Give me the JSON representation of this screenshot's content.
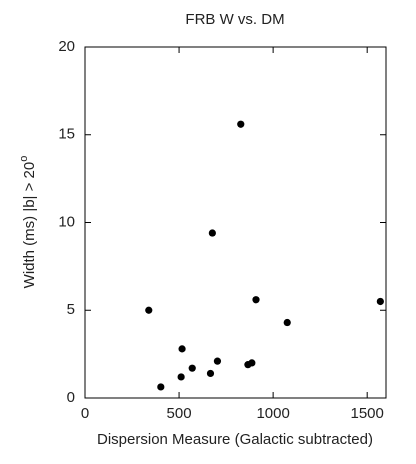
{
  "chart_data": {
    "type": "scatter",
    "title": "FRB W vs. DM",
    "xlabel": "Dispersion Measure (Galactic subtracted)",
    "ylabel": "Width (ms) |b| > 20",
    "ylabel_superscript": "o",
    "x": [
      339,
      403,
      511,
      516,
      570,
      667,
      677,
      704,
      828,
      866,
      887,
      909,
      1075,
      1570
    ],
    "values": [
      5.0,
      0.63,
      1.2,
      2.8,
      1.7,
      1.4,
      9.4,
      2.1,
      15.6,
      1.9,
      2.0,
      5.6,
      4.3,
      5.5
    ],
    "color": "#000000",
    "xlim": [
      0,
      1600
    ],
    "xticks": [
      0,
      500,
      1000,
      1500
    ],
    "ylim": [
      0,
      20
    ],
    "yticks": [
      0,
      5,
      10,
      15,
      20
    ],
    "grid": false
  }
}
